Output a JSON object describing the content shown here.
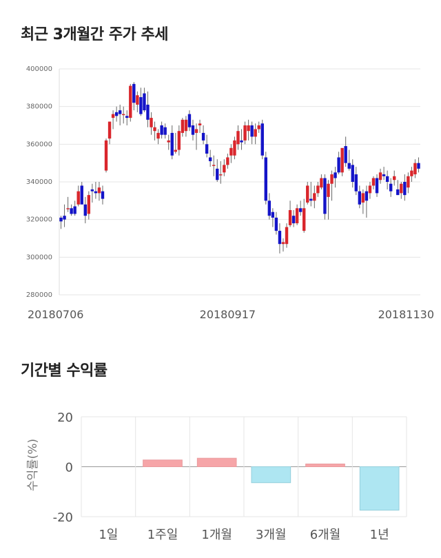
{
  "titles": {
    "price_trend": "최근 3개월간 주가 추세",
    "period_returns": "기간별 수익률"
  },
  "colors": {
    "up": "#d9262c",
    "down": "#1414c8",
    "positive_bar": "#f6a5a8",
    "negative_bar": "#aee6f2",
    "grid": "#e5e5e5"
  },
  "chart_data": [
    {
      "type": "candlestick",
      "title": "최근 3개월간 주가 추세",
      "ylim": [
        280000,
        400000
      ],
      "y_ticks": [
        280000,
        300000,
        320000,
        340000,
        360000,
        380000,
        400000
      ],
      "x_tick_labels": [
        {
          "label": "20180706",
          "index": 0
        },
        {
          "label": "20180917",
          "index": 48
        },
        {
          "label": "20181130",
          "index": 96
        }
      ],
      "candles": [
        [
          321000,
          322000,
          315000,
          319000
        ],
        [
          322000,
          328000,
          316000,
          320000
        ],
        [
          326000,
          332000,
          324000,
          326000
        ],
        [
          326000,
          328000,
          322000,
          323000
        ],
        [
          327000,
          330000,
          322000,
          323000
        ],
        [
          328000,
          338000,
          327000,
          335000
        ],
        [
          338000,
          340000,
          329000,
          328000
        ],
        [
          328000,
          332000,
          318000,
          322000
        ],
        [
          323000,
          335000,
          320000,
          333000
        ],
        [
          336000,
          339000,
          329000,
          335000
        ],
        [
          335000,
          340000,
          331000,
          334000
        ],
        [
          334000,
          340000,
          330000,
          337000
        ],
        [
          335000,
          338000,
          328000,
          331000
        ],
        [
          346000,
          363000,
          345000,
          362000
        ],
        [
          363000,
          372000,
          360000,
          372000
        ],
        [
          374000,
          378000,
          368000,
          376000
        ],
        [
          377000,
          380000,
          372000,
          375000
        ],
        [
          378000,
          381000,
          370000,
          376000
        ],
        [
          376000,
          380000,
          371000,
          376000
        ],
        [
          375000,
          378000,
          370000,
          374000
        ],
        [
          374000,
          392000,
          372000,
          391000
        ],
        [
          392000,
          393000,
          378000,
          382000
        ],
        [
          381000,
          388000,
          377000,
          386000
        ],
        [
          385000,
          390000,
          375000,
          376000
        ],
        [
          387000,
          390000,
          377000,
          378000
        ],
        [
          381000,
          388000,
          369000,
          373000
        ],
        [
          369000,
          377000,
          365000,
          374000
        ],
        [
          367000,
          372000,
          362000,
          369000
        ],
        [
          363000,
          368000,
          360000,
          366000
        ],
        [
          370000,
          372000,
          363000,
          365000
        ],
        [
          369000,
          371000,
          363000,
          365000
        ],
        [
          361000,
          365000,
          357000,
          362000
        ],
        [
          366000,
          370000,
          352000,
          354000
        ],
        [
          356000,
          366000,
          355000,
          357000
        ],
        [
          357000,
          370000,
          354000,
          367000
        ],
        [
          366000,
          374000,
          364000,
          373000
        ],
        [
          367000,
          375000,
          364000,
          373000
        ],
        [
          376000,
          378000,
          367000,
          369000
        ],
        [
          370000,
          373000,
          362000,
          365000
        ],
        [
          366000,
          371000,
          357000,
          368000
        ],
        [
          370000,
          373000,
          366000,
          371000
        ],
        [
          366000,
          370000,
          360000,
          362000
        ],
        [
          360000,
          365000,
          353000,
          355000
        ],
        [
          353000,
          357000,
          348000,
          351000
        ],
        [
          349000,
          354000,
          343000,
          349000
        ],
        [
          347000,
          352000,
          340000,
          341000
        ],
        [
          344000,
          351000,
          339000,
          344000
        ],
        [
          345000,
          352000,
          343000,
          349000
        ],
        [
          349000,
          355000,
          347000,
          353000
        ],
        [
          354000,
          360000,
          350000,
          358000
        ],
        [
          354000,
          364000,
          352000,
          362000
        ],
        [
          360000,
          370000,
          357000,
          367000
        ],
        [
          362000,
          368000,
          357000,
          361000
        ],
        [
          362000,
          372000,
          360000,
          370000
        ],
        [
          367000,
          373000,
          362000,
          370000
        ],
        [
          370000,
          372000,
          360000,
          364000
        ],
        [
          364000,
          371000,
          360000,
          368000
        ],
        [
          368000,
          372000,
          366000,
          370000
        ],
        [
          371000,
          373000,
          352000,
          354000
        ],
        [
          353000,
          356000,
          328000,
          330000
        ],
        [
          330000,
          334000,
          320000,
          322000
        ],
        [
          324000,
          326000,
          316000,
          321000
        ],
        [
          321000,
          324000,
          312000,
          314000
        ],
        [
          314000,
          318000,
          302000,
          307000
        ],
        [
          307000,
          310000,
          303000,
          308000
        ],
        [
          307000,
          318000,
          305000,
          316000
        ],
        [
          317000,
          330000,
          316000,
          325000
        ],
        [
          322000,
          325000,
          316000,
          318000
        ],
        [
          318000,
          328000,
          317000,
          326000
        ],
        [
          326000,
          330000,
          322000,
          324000
        ],
        [
          314000,
          331000,
          313000,
          326000
        ],
        [
          329000,
          340000,
          328000,
          338000
        ],
        [
          331000,
          340000,
          327000,
          330000
        ],
        [
          330000,
          338000,
          326000,
          334000
        ],
        [
          334000,
          340000,
          332000,
          338000
        ],
        [
          337000,
          344000,
          336000,
          342000
        ],
        [
          342000,
          344000,
          320000,
          323000
        ],
        [
          332000,
          341000,
          320000,
          339000
        ],
        [
          339000,
          346000,
          330000,
          344000
        ],
        [
          345000,
          348000,
          337000,
          342000
        ],
        [
          353000,
          356000,
          344000,
          345000
        ],
        [
          345000,
          357000,
          343000,
          358000
        ],
        [
          359000,
          364000,
          348000,
          350000
        ],
        [
          350000,
          357000,
          346000,
          347000
        ],
        [
          349000,
          352000,
          337000,
          340000
        ],
        [
          344000,
          348000,
          333000,
          335000
        ],
        [
          335000,
          338000,
          326000,
          328000
        ],
        [
          329000,
          336000,
          323000,
          334000
        ],
        [
          335000,
          338000,
          321000,
          330000
        ],
        [
          334000,
          340000,
          331000,
          338000
        ],
        [
          338000,
          343000,
          336000,
          342000
        ],
        [
          342000,
          344000,
          332000,
          334000
        ],
        [
          341000,
          347000,
          339000,
          345000
        ],
        [
          344000,
          348000,
          341000,
          343000
        ],
        [
          343000,
          346000,
          336000,
          340000
        ],
        [
          339000,
          342000,
          332000,
          335000
        ],
        [
          341000,
          346000,
          338000,
          343000
        ],
        [
          336000,
          341000,
          333000,
          333000
        ],
        [
          334000,
          340000,
          331000,
          339000
        ],
        [
          340000,
          344000,
          330000,
          333000
        ],
        [
          337000,
          345000,
          334000,
          343000
        ],
        [
          343000,
          348000,
          340000,
          346000
        ],
        [
          344000,
          352000,
          342000,
          350000
        ],
        [
          350000,
          353000,
          345000,
          347000
        ]
      ]
    },
    {
      "type": "bar",
      "title": "기간별 수익률",
      "ylabel": "수익률(%)",
      "ylim": [
        -20,
        20
      ],
      "y_ticks": [
        20,
        0,
        -20
      ],
      "categories": [
        "1일",
        "1주일",
        "1개월",
        "3개월",
        "6개월",
        "1년"
      ],
      "values": [
        0.0,
        2.7,
        3.4,
        -6.4,
        1.1,
        -17.4
      ]
    }
  ]
}
